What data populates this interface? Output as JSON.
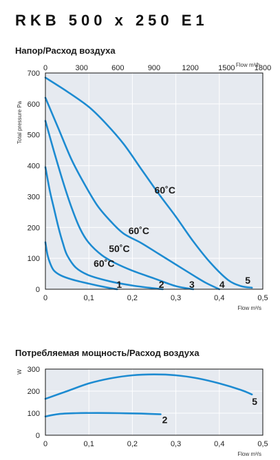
{
  "header": {
    "model": "RKB 500 x 250 E1"
  },
  "colors": {
    "curve": "#1d8bd1",
    "plot_background": "#e6eaf0",
    "grid": "#ffffff",
    "axis": "#111111"
  },
  "chart_data": [
    {
      "type": "line",
      "title": "Напор/Расход воздуха",
      "xlabel": "Flow m³/s",
      "ylabel": "Total pressure Pa",
      "x2label": "Flow m³/h",
      "xlim": [
        0,
        0.5
      ],
      "ylim": [
        0,
        700
      ],
      "x_ticks": [
        0,
        0.1,
        0.2,
        0.3,
        0.4,
        0.5
      ],
      "x_tick_labels": [
        "0",
        "0,1",
        "0,2",
        "0,3",
        "0,4",
        "0,5"
      ],
      "x2_ticks": [
        0,
        300,
        600,
        900,
        1200,
        1500,
        1800
      ],
      "x2_tick_labels": [
        "0",
        "300",
        "600",
        "900",
        "1200",
        "1500",
        "1800"
      ],
      "y_ticks": [
        0,
        100,
        200,
        300,
        400,
        500,
        600,
        700
      ],
      "y_tick_labels": [
        "0",
        "100",
        "200",
        "300",
        "400",
        "500",
        "600",
        "700"
      ],
      "grid": true,
      "series": [
        {
          "name": "1",
          "x": [
            0,
            0.005,
            0.012,
            0.02,
            0.035,
            0.06,
            0.1,
            0.14,
            0.165
          ],
          "y": [
            152,
            110,
            80,
            60,
            45,
            32,
            18,
            6,
            0
          ]
        },
        {
          "name": "2",
          "x": [
            0,
            0.01,
            0.02,
            0.03,
            0.04,
            0.05,
            0.07,
            0.1,
            0.15,
            0.2,
            0.25,
            0.27
          ],
          "y": [
            395,
            320,
            260,
            200,
            150,
            110,
            70,
            45,
            25,
            12,
            3,
            0
          ]
        },
        {
          "name": "3",
          "x": [
            0,
            0.02,
            0.04,
            0.06,
            0.08,
            0.1,
            0.13,
            0.16,
            0.2,
            0.25,
            0.3,
            0.34
          ],
          "y": [
            545,
            445,
            350,
            265,
            195,
            150,
            110,
            85,
            60,
            35,
            10,
            0
          ]
        },
        {
          "name": "4",
          "x": [
            0,
            0.03,
            0.06,
            0.09,
            0.12,
            0.15,
            0.18,
            0.22,
            0.26,
            0.3,
            0.34,
            0.37,
            0.4
          ],
          "y": [
            620,
            520,
            420,
            340,
            270,
            220,
            180,
            150,
            115,
            80,
            45,
            20,
            0
          ]
        },
        {
          "name": "5",
          "x": [
            0,
            0.05,
            0.1,
            0.14,
            0.18,
            0.22,
            0.26,
            0.3,
            0.34,
            0.38,
            0.42,
            0.45,
            0.475
          ],
          "y": [
            685,
            640,
            590,
            535,
            470,
            390,
            310,
            235,
            155,
            85,
            30,
            10,
            5
          ]
        }
      ],
      "annotations": [
        {
          "text": "60˚C",
          "x": 0.275,
          "y": 310
        },
        {
          "text": "60˚C",
          "x": 0.215,
          "y": 178
        },
        {
          "text": "50˚C",
          "x": 0.17,
          "y": 120
        },
        {
          "text": "60˚C",
          "x": 0.135,
          "y": 72
        }
      ]
    },
    {
      "type": "line",
      "title": "Потребляемая мощность/Расход воздуха",
      "xlabel": "Flow m³/s",
      "ylabel": "W",
      "xlim": [
        0,
        0.5
      ],
      "ylim": [
        0,
        300
      ],
      "x_ticks": [
        0,
        0.1,
        0.2,
        0.3,
        0.4,
        0.5
      ],
      "x_tick_labels": [
        "0",
        "0,1",
        "0,2",
        "0,3",
        "0,4",
        "0,5"
      ],
      "y_ticks": [
        0,
        100,
        200,
        300
      ],
      "y_tick_labels": [
        "0",
        "100",
        "200",
        "300"
      ],
      "grid": true,
      "series": [
        {
          "name": "5",
          "x": [
            0,
            0.05,
            0.1,
            0.15,
            0.2,
            0.25,
            0.3,
            0.35,
            0.4,
            0.45,
            0.475
          ],
          "y": [
            165,
            200,
            235,
            258,
            272,
            276,
            272,
            258,
            235,
            205,
            185
          ]
        },
        {
          "name": "2",
          "x": [
            0,
            0.03,
            0.07,
            0.12,
            0.17,
            0.22,
            0.265
          ],
          "y": [
            85,
            96,
            100,
            101,
            100,
            98,
            95
          ]
        }
      ]
    }
  ]
}
